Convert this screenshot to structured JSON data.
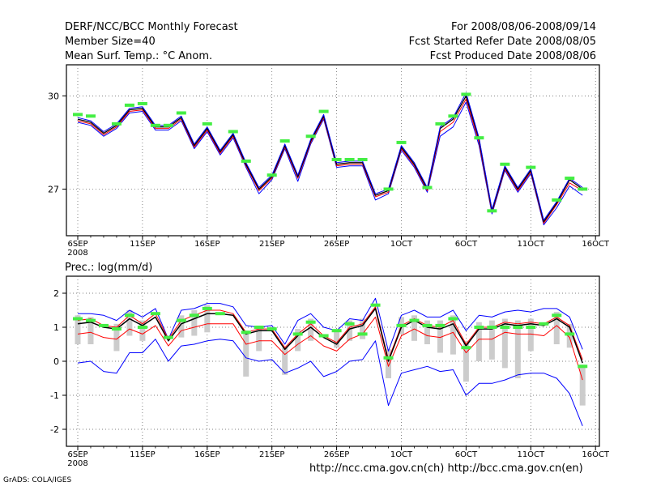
{
  "header": {
    "title": "DERF/NCC/BCC Monthly Forecast",
    "member_size": "Member Size=40",
    "variable": "Mean Surf. Temp.: °C Anom.",
    "period": "For 2008/08/06-2008/09/14",
    "started": "Fcst Started Refer Date 2008/08/05",
    "produced": "Fcst Produced Date 2008/08/06"
  },
  "footer": {
    "urls": "http://ncc.cma.gov.cn(ch)   http://bcc.cma.gov.cn(en)",
    "credit": "GrADS: COLA/IGES"
  },
  "colors": {
    "ensemble_upper": "#0000ff",
    "ensemble_lower": "#ff0000",
    "ensemble_mean": "#000000",
    "marker": "#44ee44",
    "spread_bar": "#cccccc",
    "grid": "#555555"
  },
  "chart_data": [
    {
      "type": "line",
      "title": "Mean Surf. Temp.: °C Anom.",
      "x_start_label": "6SEP",
      "x_year_label": "2008",
      "tick_labels": [
        "6SEP",
        "11SEP",
        "16SEP",
        "21SEP",
        "26SEP",
        "1OCT",
        "6OCT",
        "11OCT",
        "16OCT"
      ],
      "tick_days": [
        0,
        5,
        10,
        15,
        20,
        25,
        30,
        35,
        40
      ],
      "ylim": [
        25.5,
        31
      ],
      "yticks": [
        27,
        30
      ],
      "series": [
        {
          "name": "upper",
          "values": [
            29.3,
            29.2,
            28.85,
            29.1,
            29.6,
            29.65,
            29.05,
            29.05,
            29.35,
            28.45,
            29.0,
            28.25,
            28.8,
            27.85,
            27.05,
            27.45,
            28.45,
            27.45,
            28.6,
            29.4,
            27.85,
            27.9,
            27.9,
            26.85,
            27.0,
            28.4,
            27.85,
            27.05,
            29.0,
            29.3,
            30.1,
            28.65,
            26.35,
            27.75,
            27.05,
            27.65,
            26.0,
            26.6,
            27.35,
            27.05
          ]
        },
        {
          "name": "mean",
          "values": [
            29.25,
            29.15,
            28.8,
            29.05,
            29.55,
            29.6,
            29.0,
            29.0,
            29.3,
            28.4,
            28.95,
            28.2,
            28.75,
            27.8,
            27.0,
            27.4,
            28.4,
            27.4,
            28.55,
            29.35,
            27.8,
            27.85,
            27.85,
            26.8,
            26.95,
            28.35,
            27.8,
            27.0,
            28.95,
            29.25,
            30.0,
            28.6,
            26.3,
            27.7,
            27.0,
            27.6,
            25.95,
            26.55,
            27.3,
            27.0
          ]
        },
        {
          "name": "lower",
          "values": [
            29.2,
            29.1,
            28.75,
            29.0,
            29.5,
            29.55,
            28.95,
            28.95,
            29.25,
            28.35,
            28.9,
            28.15,
            28.7,
            27.75,
            26.95,
            27.35,
            28.35,
            27.35,
            28.5,
            29.3,
            27.75,
            27.8,
            27.8,
            26.75,
            26.9,
            28.3,
            27.75,
            26.95,
            28.85,
            29.15,
            29.9,
            28.5,
            26.25,
            27.65,
            26.95,
            27.55,
            25.9,
            26.5,
            27.2,
            26.95
          ]
        },
        {
          "name": "low",
          "values": [
            29.15,
            29.05,
            28.7,
            28.95,
            29.45,
            29.5,
            28.9,
            28.9,
            29.2,
            28.3,
            28.85,
            28.1,
            28.65,
            27.7,
            26.85,
            27.3,
            28.3,
            27.25,
            28.45,
            29.25,
            27.7,
            27.75,
            27.75,
            26.65,
            26.85,
            28.25,
            27.7,
            26.9,
            28.7,
            29.0,
            29.8,
            28.4,
            26.2,
            27.6,
            26.9,
            27.5,
            25.85,
            26.4,
            27.1,
            26.8
          ]
        },
        {
          "name": "markers",
          "values": [
            29.4,
            29.35,
            null,
            29.1,
            29.7,
            29.75,
            29.05,
            29.05,
            29.45,
            null,
            29.1,
            null,
            28.85,
            27.9,
            null,
            27.45,
            28.55,
            null,
            28.7,
            29.5,
            27.95,
            27.95,
            27.95,
            null,
            27.0,
            28.5,
            null,
            27.05,
            29.1,
            29.35,
            30.05,
            28.65,
            26.3,
            27.8,
            null,
            27.7,
            null,
            26.65,
            27.35,
            27.0
          ]
        }
      ]
    },
    {
      "type": "line",
      "title": "Prec.: log(mm/d)",
      "x_start_label": "6SEP",
      "x_year_label": "2008",
      "tick_labels": [
        "6SEP",
        "11SEP",
        "16SEP",
        "21SEP",
        "26SEP",
        "1OCT",
        "6OCT",
        "11OCT",
        "16OCT"
      ],
      "tick_days": [
        0,
        5,
        10,
        15,
        20,
        25,
        30,
        35,
        40
      ],
      "ylim": [
        -2.5,
        2.5
      ],
      "yticks": [
        -2,
        -1,
        0,
        1,
        2
      ],
      "series": [
        {
          "name": "max",
          "values": [
            1.4,
            1.4,
            1.35,
            1.2,
            1.5,
            1.3,
            1.55,
            0.65,
            1.5,
            1.55,
            1.7,
            1.7,
            1.6,
            1.05,
            1.0,
            1.05,
            0.5,
            1.2,
            1.4,
            1.0,
            0.9,
            1.25,
            1.2,
            1.85,
            0.3,
            1.35,
            1.5,
            1.3,
            1.3,
            1.5,
            0.9,
            1.35,
            1.3,
            1.45,
            1.5,
            1.45,
            1.55,
            1.55,
            1.3,
            0.35
          ]
        },
        {
          "name": "upper",
          "values": [
            1.2,
            1.25,
            1.05,
            1.0,
            1.35,
            1.1,
            1.4,
            0.65,
            1.2,
            1.35,
            1.5,
            1.5,
            1.4,
            0.85,
            0.95,
            0.95,
            0.4,
            0.8,
            1.1,
            0.75,
            0.55,
            1.0,
            1.1,
            1.6,
            0.05,
            1.05,
            1.25,
            1.05,
            1.0,
            1.2,
            0.5,
            1.0,
            1.0,
            1.15,
            1.1,
            1.15,
            1.1,
            1.3,
            1.05,
            0.05
          ]
        },
        {
          "name": "mean",
          "values": [
            1.1,
            1.15,
            1.0,
            0.95,
            1.25,
            1.05,
            1.3,
            0.6,
            1.1,
            1.25,
            1.4,
            1.4,
            1.35,
            0.8,
            0.9,
            0.9,
            0.35,
            0.75,
            1.0,
            0.7,
            0.5,
            0.95,
            1.05,
            1.55,
            0.0,
            1.0,
            1.2,
            1.0,
            0.95,
            1.1,
            0.45,
            0.95,
            0.95,
            1.1,
            1.05,
            1.1,
            1.05,
            1.25,
            1.0,
            -0.05
          ]
        },
        {
          "name": "lower",
          "values": [
            0.8,
            0.85,
            0.7,
            0.65,
            0.95,
            0.8,
            1.05,
            0.45,
            0.9,
            1.0,
            1.1,
            1.1,
            1.1,
            0.5,
            0.6,
            0.6,
            0.2,
            0.5,
            0.75,
            0.45,
            0.3,
            0.65,
            0.8,
            1.3,
            -0.15,
            0.75,
            0.95,
            0.75,
            0.7,
            0.85,
            0.25,
            0.65,
            0.65,
            0.85,
            0.8,
            0.8,
            0.75,
            1.05,
            0.7,
            -0.55
          ]
        },
        {
          "name": "min",
          "values": [
            -0.05,
            0.0,
            -0.3,
            -0.35,
            0.25,
            0.25,
            0.65,
            0.0,
            0.45,
            0.5,
            0.6,
            0.65,
            0.6,
            0.1,
            0.0,
            0.05,
            -0.35,
            -0.2,
            0.0,
            -0.45,
            -0.3,
            0.0,
            0.05,
            0.6,
            -1.3,
            -0.35,
            -0.25,
            -0.15,
            -0.3,
            -0.25,
            -1.0,
            -0.65,
            -0.65,
            -0.55,
            -0.4,
            -0.35,
            -0.35,
            -0.5,
            -0.95,
            -1.9
          ]
        },
        {
          "name": "markers",
          "values": [
            1.25,
            1.2,
            1.05,
            0.95,
            1.35,
            1.0,
            1.4,
            0.7,
            1.2,
            1.35,
            1.55,
            1.4,
            null,
            0.85,
            1.0,
            0.95,
            null,
            0.8,
            1.15,
            0.75,
            0.9,
            1.1,
            0.8,
            1.65,
            0.1,
            1.05,
            1.2,
            1.05,
            1.05,
            1.25,
            0.4,
            1.0,
            1.0,
            1.0,
            1.0,
            1.0,
            1.1,
            1.35,
            0.8,
            -0.15
          ]
        },
        {
          "name": "spread_low",
          "values": [
            0.5,
            0.5,
            null,
            0.3,
            0.75,
            0.6,
            null,
            null,
            0.7,
            0.75,
            0.85,
            null,
            null,
            -0.45,
            0.3,
            null,
            -0.4,
            0.3,
            0.6,
            null,
            0.4,
            0.6,
            0.65,
            null,
            -0.5,
            0.8,
            0.6,
            0.5,
            0.25,
            0.2,
            -0.6,
            0.0,
            0.05,
            -0.2,
            -0.5,
            0.3,
            null,
            0.5,
            0.4,
            -1.3
          ]
        },
        {
          "name": "spread_high",
          "values": [
            1.35,
            1.3,
            null,
            1.1,
            1.5,
            1.2,
            null,
            null,
            1.35,
            1.5,
            1.65,
            null,
            null,
            0.9,
            1.05,
            null,
            0.4,
            0.95,
            1.25,
            null,
            0.9,
            1.2,
            1.25,
            null,
            0.35,
            1.3,
            1.35,
            1.2,
            1.2,
            1.35,
            0.6,
            1.15,
            1.2,
            1.25,
            1.2,
            1.25,
            null,
            1.45,
            1.1,
            -0.1
          ]
        }
      ]
    }
  ]
}
